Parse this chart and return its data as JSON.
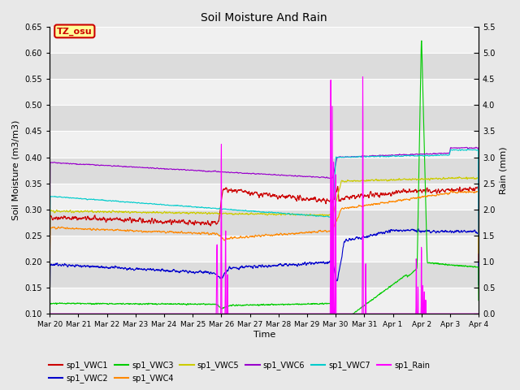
{
  "title": "Soil Moisture And Rain",
  "xlabel": "Time",
  "ylabel_left": "Soil Moisture (m3/m3)",
  "ylabel_right": "Rain (mm)",
  "xlim_start": 0,
  "xlim_end": 15,
  "ylim_left": [
    0.1,
    0.65
  ],
  "ylim_right": [
    0.0,
    5.5
  ],
  "xtick_labels": [
    "Mar 20",
    "Mar 21",
    "Mar 22",
    "Mar 23",
    "Mar 24",
    "Mar 25",
    "Mar 26",
    "Mar 27",
    "Mar 28",
    "Mar 29",
    "Mar 30",
    "Mar 31",
    "Apr 1",
    "Apr 2",
    "Apr 3",
    "Apr 4"
  ],
  "xtick_positions": [
    0,
    1,
    2,
    3,
    4,
    5,
    6,
    7,
    8,
    9,
    10,
    11,
    12,
    13,
    14,
    15
  ],
  "ytick_left": [
    0.1,
    0.15,
    0.2,
    0.25,
    0.3,
    0.35,
    0.4,
    0.45,
    0.5,
    0.55,
    0.6,
    0.65
  ],
  "ytick_right": [
    0.0,
    0.5,
    1.0,
    1.5,
    2.0,
    2.5,
    3.0,
    3.5,
    4.0,
    4.5,
    5.0,
    5.5
  ],
  "bg_dark": "#dcdcdc",
  "bg_light": "#f0f0f0",
  "grid_color": "#ffffff",
  "fig_bg": "#e8e8e8",
  "label_box_text": "TZ_osu",
  "label_box_color": "#ffff99",
  "label_box_edge": "#cc0000",
  "colors": {
    "vwc1": "#cc0000",
    "vwc2": "#0000cc",
    "vwc3": "#00cc00",
    "vwc4": "#ff8800",
    "vwc5": "#cccc00",
    "vwc6": "#9900cc",
    "vwc7": "#00cccc",
    "rain": "#ff00ff"
  },
  "lw": 0.8
}
